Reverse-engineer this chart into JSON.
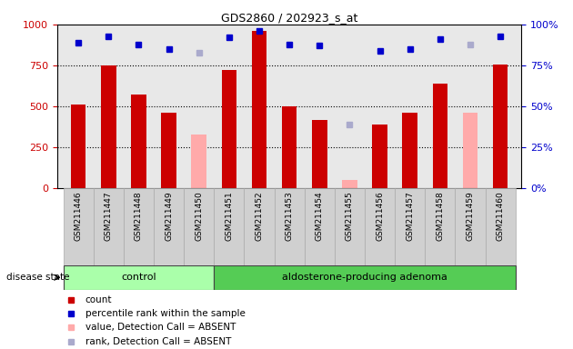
{
  "title": "GDS2860 / 202923_s_at",
  "samples": [
    "GSM211446",
    "GSM211447",
    "GSM211448",
    "GSM211449",
    "GSM211450",
    "GSM211451",
    "GSM211452",
    "GSM211453",
    "GSM211454",
    "GSM211455",
    "GSM211456",
    "GSM211457",
    "GSM211458",
    "GSM211459",
    "GSM211460"
  ],
  "counts": [
    510,
    750,
    570,
    460,
    null,
    720,
    960,
    500,
    415,
    null,
    390,
    460,
    640,
    null,
    755
  ],
  "absent_values": [
    null,
    null,
    null,
    null,
    330,
    null,
    null,
    null,
    null,
    50,
    null,
    null,
    null,
    460,
    null
  ],
  "percentile_ranks": [
    89,
    93,
    88,
    85,
    null,
    92,
    96,
    88,
    87,
    null,
    84,
    85,
    91,
    null,
    93
  ],
  "absent_ranks": [
    null,
    null,
    null,
    null,
    83,
    null,
    null,
    null,
    null,
    39,
    null,
    null,
    null,
    88,
    null
  ],
  "groups": [
    "control",
    "control",
    "control",
    "control",
    "control",
    "aldosterone-producing adenoma",
    "aldosterone-producing adenoma",
    "aldosterone-producing adenoma",
    "aldosterone-producing adenoma",
    "aldosterone-producing adenoma",
    "aldosterone-producing adenoma",
    "aldosterone-producing adenoma",
    "aldosterone-producing adenoma",
    "aldosterone-producing adenoma",
    "aldosterone-producing adenoma"
  ],
  "ylim_left": [
    0,
    1000
  ],
  "ylim_right": [
    0,
    100
  ],
  "yticks_left": [
    0,
    250,
    500,
    750,
    1000
  ],
  "yticks_right": [
    0,
    25,
    50,
    75,
    100
  ],
  "bar_color_red": "#cc0000",
  "bar_color_pink": "#ffaaaa",
  "dot_color_blue": "#0000cc",
  "dot_color_light_blue": "#aaaacc",
  "bg_color_plot": "#e8e8e8",
  "bg_color_xtick": "#d0d0d0",
  "bg_color_control": "#aaffaa",
  "bg_color_adenoma": "#55cc55",
  "disease_state_label": "disease state",
  "group_control_label": "control",
  "group_adenoma_label": "aldosterone-producing adenoma",
  "legend_items": [
    "count",
    "percentile rank within the sample",
    "value, Detection Call = ABSENT",
    "rank, Detection Call = ABSENT"
  ],
  "bar_width": 0.5,
  "n_control": 5,
  "n_samples": 15
}
